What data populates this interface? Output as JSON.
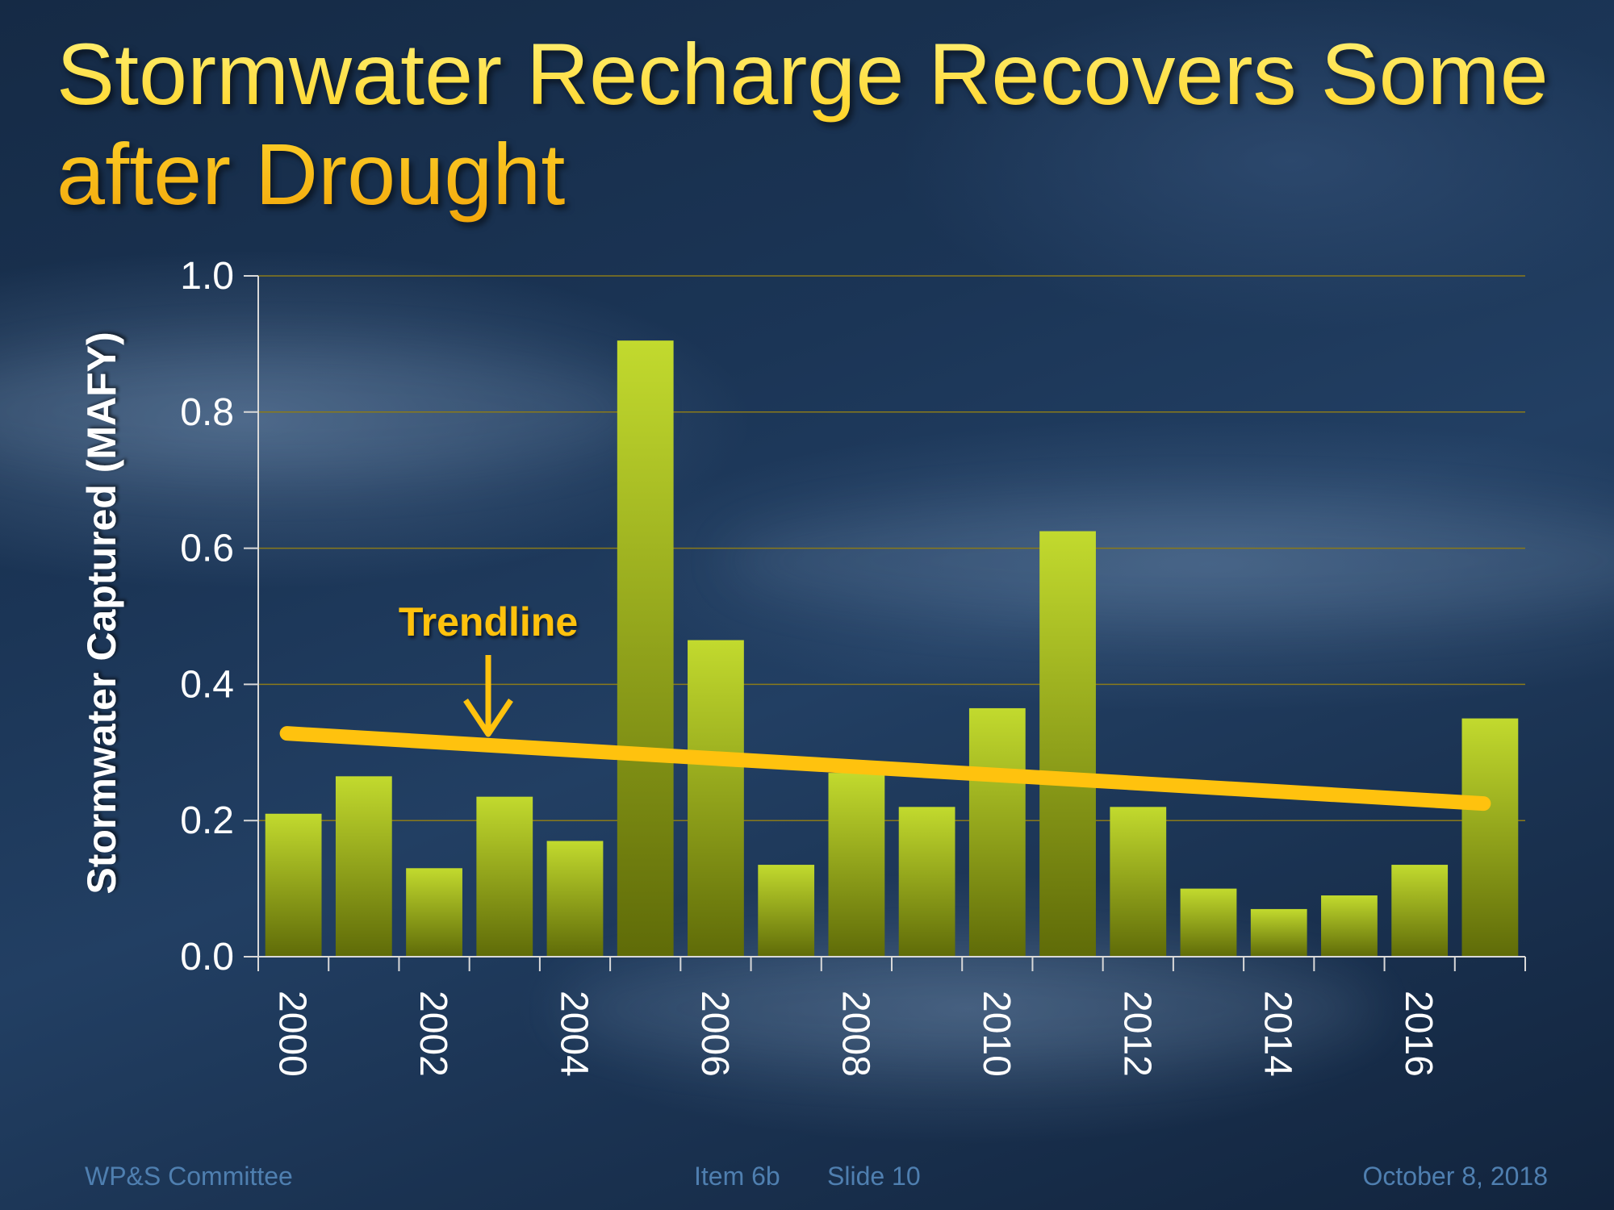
{
  "slide": {
    "title": "Stormwater Recharge Recovers Some after Drought",
    "footer_left": "WP&S Committee",
    "footer_item": "Item 6b",
    "footer_slide": "Slide 10",
    "footer_date": "October 8, 2018"
  },
  "colors": {
    "bar_light": "#c2da2e",
    "bar_dark": "#5f6b08",
    "trendline": "#ffc20e",
    "gridline": "#8a7a1a",
    "axis": "#d9d9d9",
    "label": "#ffffff"
  },
  "chart_data": {
    "type": "bar",
    "title": "",
    "xlabel": "",
    "ylabel": "Stormwater Captured (MAFY)",
    "ylim": [
      0,
      1.0
    ],
    "yticks": [
      "0.0",
      "0.2",
      "0.4",
      "0.6",
      "0.8",
      "1.0"
    ],
    "categories": [
      "2000",
      "2001",
      "2002",
      "2003",
      "2004",
      "2005",
      "2006",
      "2007",
      "2008",
      "2009",
      "2010",
      "2011",
      "2012",
      "2013",
      "2014",
      "2015",
      "2016",
      "2017"
    ],
    "x_tick_labels": [
      "2000",
      "2002",
      "2004",
      "2006",
      "2008",
      "2010",
      "2012",
      "2014",
      "2016"
    ],
    "values": [
      0.21,
      0.265,
      0.13,
      0.235,
      0.17,
      0.905,
      0.465,
      0.135,
      0.27,
      0.22,
      0.365,
      0.625,
      0.22,
      0.1,
      0.07,
      0.09,
      0.135,
      0.35
    ],
    "grid": true,
    "trendline": {
      "label": "Trendline",
      "start": {
        "x": "2000",
        "y": 0.328
      },
      "end": {
        "x": "2017",
        "y": 0.225
      }
    }
  }
}
